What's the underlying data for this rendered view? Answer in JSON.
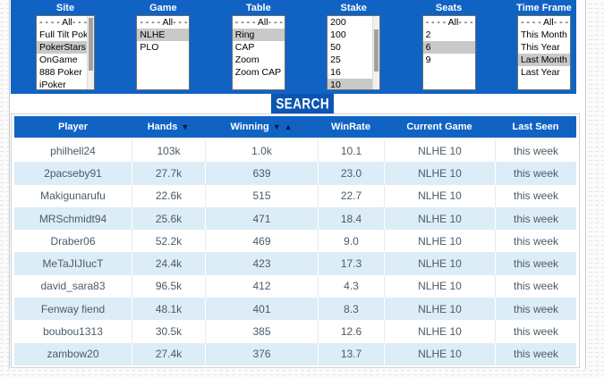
{
  "colors": {
    "accent": "#1063c3",
    "button": "#0d55b2",
    "stripe": "#dcedf7",
    "selection": "#c9c9c9"
  },
  "filters": {
    "search_label": "SEARCH",
    "groups": [
      {
        "id": "site",
        "label": "Site",
        "scrollbar": true,
        "options": [
          "- - - - All- - - -",
          "Full Tilt Poker",
          "PokerStars",
          "OnGame",
          "888 Poker",
          "iPoker"
        ],
        "selected": "PokerStars"
      },
      {
        "id": "game",
        "label": "Game",
        "scrollbar": false,
        "options": [
          "- - - - All- - - -",
          "NLHE",
          "PLO"
        ],
        "selected": "NLHE"
      },
      {
        "id": "table",
        "label": "Table",
        "scrollbar": false,
        "options": [
          "- - - - All- - - -",
          "Ring",
          "CAP",
          "Zoom",
          "Zoom CAP"
        ],
        "selected": "Ring"
      },
      {
        "id": "stake",
        "label": "Stake",
        "scrollbar": true,
        "options": [
          "200",
          "100",
          "50",
          "25",
          "16",
          "10"
        ],
        "selected": "10"
      },
      {
        "id": "seats",
        "label": "Seats",
        "scrollbar": false,
        "options": [
          "- - - - All- - - -",
          "2",
          "6",
          "9"
        ],
        "selected": "6"
      },
      {
        "id": "timeframe",
        "label": "Time Frame",
        "scrollbar": false,
        "options": [
          "- - - - All- - - -",
          "This Month",
          "This Year",
          "Last Month",
          "Last Year"
        ],
        "selected": "Last Month"
      }
    ]
  },
  "table": {
    "columns": [
      {
        "id": "player",
        "label": "Player",
        "sort": []
      },
      {
        "id": "hands",
        "label": "Hands",
        "sort": [
          "desc"
        ]
      },
      {
        "id": "winning",
        "label": "Winning",
        "sort": [
          "desc",
          "asc"
        ]
      },
      {
        "id": "winrate",
        "label": "WinRate",
        "sort": []
      },
      {
        "id": "current-game",
        "label": "Current Game",
        "sort": []
      },
      {
        "id": "last-seen",
        "label": "Last Seen",
        "sort": []
      }
    ],
    "rows": [
      [
        "philhell24",
        "103k",
        "1.0k",
        "10.1",
        "NLHE 10",
        "this week"
      ],
      [
        "2pacseby91",
        "27.7k",
        "639",
        "23.0",
        "NLHE 10",
        "this week"
      ],
      [
        "Makigunarufu",
        "22.6k",
        "515",
        "22.7",
        "NLHE 10",
        "this week"
      ],
      [
        "MRSchmidt94",
        "25.6k",
        "471",
        "18.4",
        "NLHE 10",
        "this week"
      ],
      [
        "Draber06",
        "52.2k",
        "469",
        "9.0",
        "NLHE 10",
        "this week"
      ],
      [
        "MeTaJIJIucT",
        "24.4k",
        "423",
        "17.3",
        "NLHE 10",
        "this week"
      ],
      [
        "david_sara83",
        "96.5k",
        "412",
        "4.3",
        "NLHE 10",
        "this week"
      ],
      [
        "Fenway fiend",
        "48.1k",
        "401",
        "8.3",
        "NLHE 10",
        "this week"
      ],
      [
        "boubou1313",
        "30.5k",
        "385",
        "12.6",
        "NLHE 10",
        "this week"
      ],
      [
        "zambow20",
        "27.4k",
        "376",
        "13.7",
        "NLHE 10",
        "this week"
      ]
    ]
  }
}
